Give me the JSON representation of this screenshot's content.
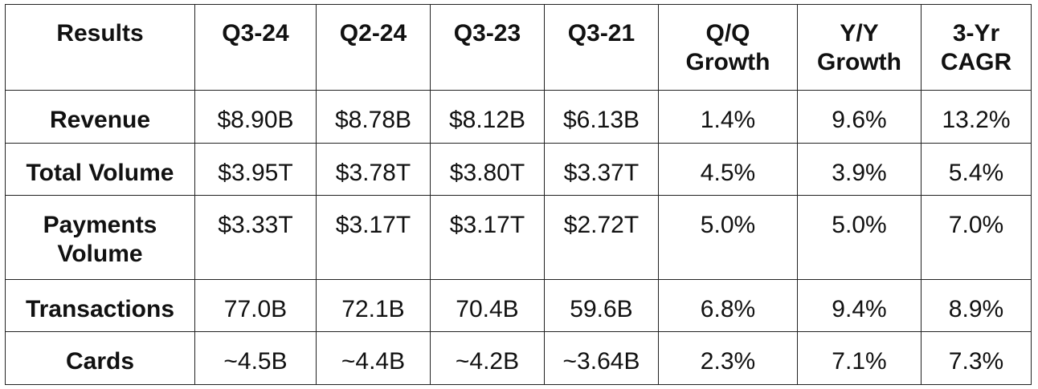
{
  "table": {
    "headers": [
      [
        "Results"
      ],
      [
        "Q3-24"
      ],
      [
        "Q2-24"
      ],
      [
        "Q3-23"
      ],
      [
        "Q3-21"
      ],
      [
        "Q/Q",
        "Growth"
      ],
      [
        "Y/Y",
        "Growth"
      ],
      [
        "3-Yr",
        "CAGR"
      ]
    ],
    "rows": [
      {
        "label": [
          "Revenue"
        ],
        "cells": [
          "$8.90B",
          "$8.78B",
          "$8.12B",
          "$6.13B",
          "1.4%",
          "9.6%",
          "13.2%"
        ]
      },
      {
        "label": [
          "Total Volume"
        ],
        "cells": [
          "$3.95T",
          "$3.78T",
          "$3.80T",
          "$3.37T",
          "4.5%",
          "3.9%",
          "5.4%"
        ]
      },
      {
        "label": [
          "Payments",
          "Volume"
        ],
        "cells": [
          "$3.33T",
          "$3.17T",
          "$3.17T",
          "$2.72T",
          "5.0%",
          "5.0%",
          "7.0%"
        ]
      },
      {
        "label": [
          "Transactions"
        ],
        "cells": [
          "77.0B",
          "72.1B",
          "70.4B",
          "59.6B",
          "6.8%",
          "9.4%",
          "8.9%"
        ]
      },
      {
        "label": [
          "Cards"
        ],
        "cells": [
          "~4.5B",
          "~4.4B",
          "~4.2B",
          "~3.64B",
          "2.3%",
          "7.1%",
          "7.3%"
        ]
      }
    ]
  }
}
